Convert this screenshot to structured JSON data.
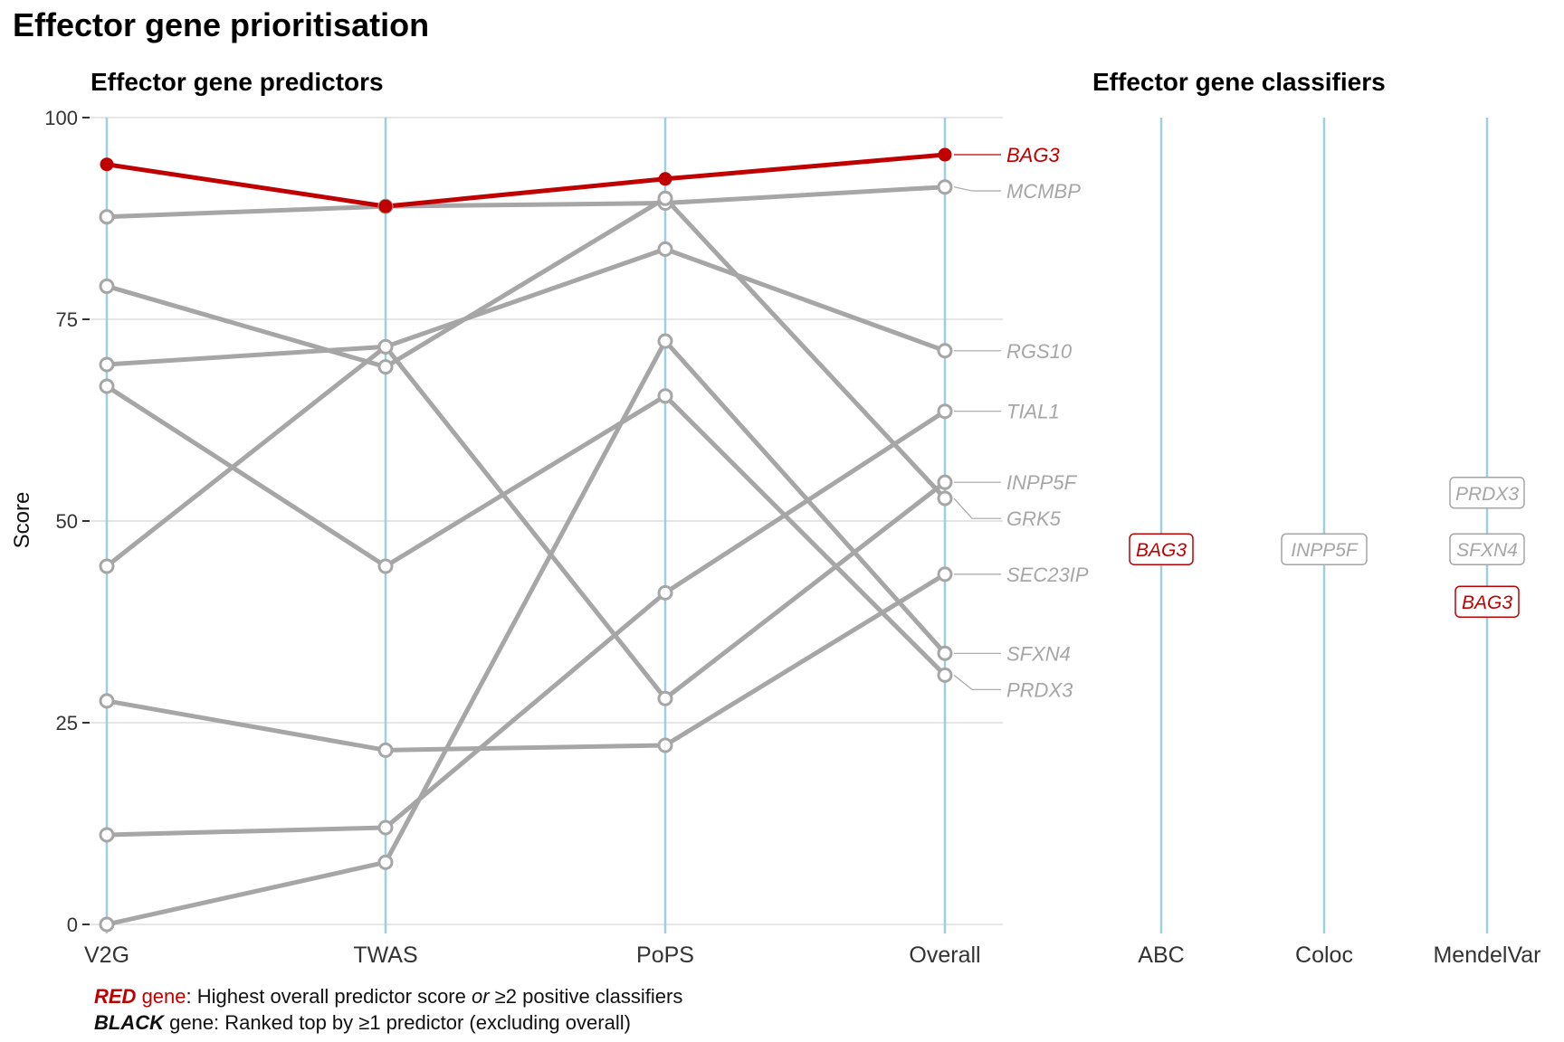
{
  "title": "Effector gene prioritisation",
  "colors": {
    "red": "#c00000",
    "grey": "#a6a6a6",
    "axis": "#9ecfdc",
    "grid": "#e6e6e6"
  },
  "chart_data": [
    {
      "type": "line",
      "subtitle": "Effector gene predictors",
      "ylabel": "Score",
      "ylim": [
        0,
        100
      ],
      "yticks": [
        0,
        25,
        50,
        75,
        100
      ],
      "categories": [
        "V2G",
        "TWAS",
        "PoPS",
        "Overall"
      ],
      "grid": true,
      "series": [
        {
          "name": "BAG3",
          "highlight": true,
          "values": [
            94.2,
            89.0,
            92.4,
            95.4
          ]
        },
        {
          "name": "MCMBP",
          "highlight": false,
          "values": [
            87.7,
            89.0,
            89.4,
            91.4
          ]
        },
        {
          "name": "RGS10",
          "highlight": false,
          "values": [
            44.4,
            71.6,
            83.7,
            71.1
          ]
        },
        {
          "name": "TIAL1",
          "highlight": false,
          "values": [
            11.1,
            12.0,
            41.1,
            63.6
          ]
        },
        {
          "name": "INPP5F",
          "highlight": false,
          "values": [
            69.4,
            71.6,
            28.0,
            54.8
          ]
        },
        {
          "name": "GRK5",
          "highlight": false,
          "values": [
            79.1,
            69.1,
            90.0,
            52.8
          ]
        },
        {
          "name": "SEC23IP",
          "highlight": false,
          "values": [
            27.7,
            21.6,
            22.2,
            43.4
          ]
        },
        {
          "name": "SFXN4",
          "highlight": false,
          "values": [
            0.0,
            7.7,
            72.3,
            33.6
          ]
        },
        {
          "name": "PRDX3",
          "highlight": false,
          "values": [
            66.7,
            44.4,
            65.5,
            30.9
          ]
        }
      ]
    },
    {
      "type": "table",
      "subtitle": "Effector gene classifiers",
      "categories": [
        "ABC",
        "Coloc",
        "MendelVar"
      ],
      "positives": [
        {
          "classifier": "ABC",
          "gene": "BAG3",
          "highlight": true,
          "y": 46.5
        },
        {
          "classifier": "Coloc",
          "gene": "INPP5F",
          "highlight": false,
          "y": 46.5
        },
        {
          "classifier": "MendelVar",
          "gene": "PRDX3",
          "highlight": false,
          "y": 53.5
        },
        {
          "classifier": "MendelVar",
          "gene": "SFXN4",
          "highlight": false,
          "y": 46.5
        },
        {
          "classifier": "MendelVar",
          "gene": "BAG3",
          "highlight": true,
          "y": 40.0
        }
      ]
    }
  ],
  "notes": {
    "line1_bold": "RED",
    "line1_colored": " gene",
    "line1_pre": ": Highest overall predictor score ",
    "line1_em": "or",
    "line1_post": " ≥2 positive classifiers",
    "line2_bold": "BLACK",
    "line2_rest": " gene: Ranked top by ≥1 predictor (excluding overall)"
  }
}
